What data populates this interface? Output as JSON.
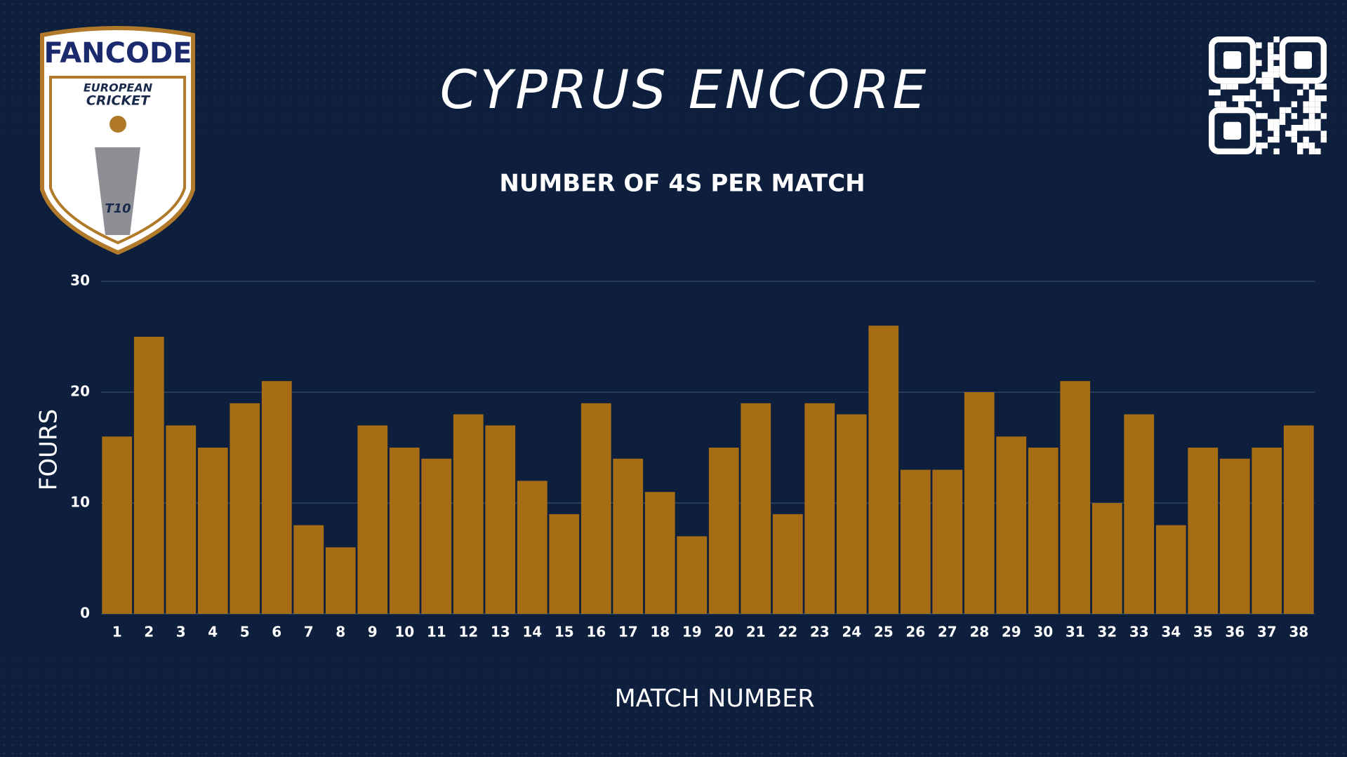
{
  "logo": {
    "brand": "FANCODE",
    "league_line1": "EUROPEAN",
    "league_line2": "CRICKET",
    "format": "T10"
  },
  "chart_data": {
    "type": "bar",
    "title": "CYPRUS ENCORE",
    "subtitle": "NUMBER OF 4S PER MATCH",
    "x_label": "MATCH NUMBER",
    "y_label": "FOURS",
    "categories": [
      "1",
      "2",
      "3",
      "4",
      "5",
      "6",
      "7",
      "8",
      "9",
      "10",
      "11",
      "12",
      "13",
      "14",
      "15",
      "16",
      "17",
      "18",
      "19",
      "20",
      "21",
      "22",
      "23",
      "24",
      "25",
      "26",
      "27",
      "28",
      "29",
      "30",
      "31",
      "32",
      "33",
      "34",
      "35",
      "36",
      "37",
      "38"
    ],
    "values": [
      16,
      25,
      17,
      15,
      19,
      21,
      8,
      6,
      17,
      15,
      14,
      18,
      17,
      12,
      9,
      19,
      14,
      11,
      7,
      15,
      19,
      9,
      19,
      18,
      26,
      13,
      13,
      20,
      16,
      15,
      21,
      10,
      18,
      8,
      15,
      14,
      15,
      17
    ],
    "color": "#a66d14",
    "ylim": [
      0,
      30
    ],
    "yticks": [
      0,
      10,
      20,
      30
    ],
    "grid": true
  }
}
